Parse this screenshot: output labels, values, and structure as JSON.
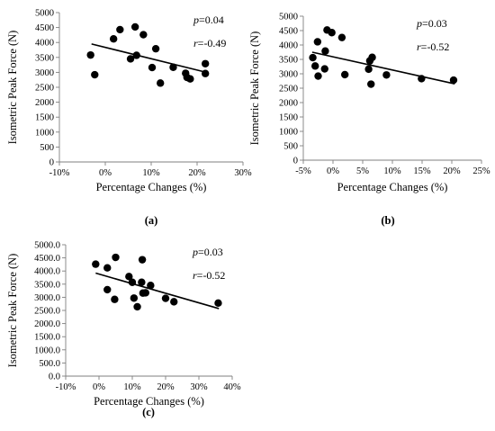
{
  "chart_data": [
    {
      "type": "scatter",
      "panel_label": "(a)",
      "xlabel": "Percentage Changes (%)",
      "ylabel": "Isometric Peak Force (N)",
      "xlim": [
        -10,
        30
      ],
      "ylim": [
        0,
        5000
      ],
      "x_ticks": [
        -10,
        0,
        10,
        20,
        30
      ],
      "x_tick_labels": [
        "-10%",
        "0%",
        "10%",
        "20%",
        "30%"
      ],
      "y_ticks": [
        0,
        500,
        1000,
        1500,
        2000,
        2500,
        3000,
        3500,
        4000,
        4500,
        5000
      ],
      "y_tick_labels": [
        "0",
        "500",
        "1000",
        "1500",
        "2000",
        "2500",
        "3000",
        "3500",
        "4000",
        "4500",
        "5000"
      ],
      "grid": false,
      "stats": {
        "p_symbol": "p",
        "p_text": "=0.04",
        "r_symbol": "r",
        "r_text": "=-0.49"
      },
      "trendline": {
        "x": [
          -3,
          22
        ],
        "y": [
          3950,
          3000
        ]
      },
      "points": [
        {
          "x": -3.2,
          "y": 3580
        },
        {
          "x": -2.3,
          "y": 2920
        },
        {
          "x": 1.8,
          "y": 4120
        },
        {
          "x": 3.2,
          "y": 4430
        },
        {
          "x": 5.5,
          "y": 3450
        },
        {
          "x": 6.5,
          "y": 4520
        },
        {
          "x": 6.8,
          "y": 3570
        },
        {
          "x": 8.3,
          "y": 4260
        },
        {
          "x": 10.2,
          "y": 3160
        },
        {
          "x": 11.0,
          "y": 3790
        },
        {
          "x": 12.0,
          "y": 2640
        },
        {
          "x": 14.8,
          "y": 3170
        },
        {
          "x": 17.5,
          "y": 2970
        },
        {
          "x": 17.8,
          "y": 2830
        },
        {
          "x": 18.5,
          "y": 2780
        },
        {
          "x": 21.8,
          "y": 3290
        },
        {
          "x": 21.8,
          "y": 2960
        }
      ]
    },
    {
      "type": "scatter",
      "panel_label": "(b)",
      "xlabel": "Percentage Changes (%)",
      "ylabel": "Isometric Peak Force (N)",
      "xlim": [
        -5,
        25
      ],
      "ylim": [
        0,
        5000
      ],
      "x_ticks": [
        -5,
        0,
        5,
        10,
        15,
        20,
        25
      ],
      "x_tick_labels": [
        "-5%",
        "0%",
        "5%",
        "10%",
        "15%",
        "20%",
        "25%"
      ],
      "y_ticks": [
        0,
        500,
        1000,
        1500,
        2000,
        2500,
        3000,
        3500,
        4000,
        4500,
        5000
      ],
      "y_tick_labels": [
        "0",
        "500",
        "1000",
        "1500",
        "2000",
        "2500",
        "3000",
        "3500",
        "4000",
        "4500",
        "5000"
      ],
      "grid": false,
      "stats": {
        "p_symbol": "p",
        "p_text": "=0.03",
        "r_symbol": "r",
        "r_text": "=-0.52"
      },
      "trendline": {
        "x": [
          -3.5,
          20.5
        ],
        "y": [
          3750,
          2650
        ]
      },
      "points": [
        {
          "x": -3.4,
          "y": 3560
        },
        {
          "x": -3.0,
          "y": 3270
        },
        {
          "x": -2.6,
          "y": 4110
        },
        {
          "x": -2.5,
          "y": 2920
        },
        {
          "x": -1.4,
          "y": 3170
        },
        {
          "x": -1.3,
          "y": 3790
        },
        {
          "x": -1.0,
          "y": 4520
        },
        {
          "x": -0.2,
          "y": 4430
        },
        {
          "x": 1.5,
          "y": 4260
        },
        {
          "x": 2.0,
          "y": 2970
        },
        {
          "x": 6.0,
          "y": 3160
        },
        {
          "x": 6.2,
          "y": 3450
        },
        {
          "x": 6.4,
          "y": 2640
        },
        {
          "x": 6.6,
          "y": 3570
        },
        {
          "x": 9.0,
          "y": 2960
        },
        {
          "x": 14.9,
          "y": 2830
        },
        {
          "x": 20.3,
          "y": 2780
        }
      ]
    },
    {
      "type": "scatter",
      "panel_label": "(c)",
      "xlabel": "Percentage Changes (%)",
      "ylabel": "Isometric Peak Force (N)",
      "xlim": [
        -10,
        40
      ],
      "ylim": [
        0,
        5000
      ],
      "x_ticks": [
        -10,
        0,
        10,
        20,
        30,
        40
      ],
      "x_tick_labels": [
        "-10%",
        "0%",
        "10%",
        "20%",
        "30%",
        "40%"
      ],
      "y_ticks": [
        0,
        500,
        1000,
        1500,
        2000,
        2500,
        3000,
        3500,
        4000,
        4500,
        5000
      ],
      "y_tick_labels": [
        "0.0",
        "500.0",
        "1000.0",
        "1500.0",
        "2000.0",
        "2500.0",
        "3000.0",
        "3500.0",
        "4000.0",
        "4500.0",
        "5000.0"
      ],
      "grid": false,
      "stats": {
        "p_symbol": "p",
        "p_text": "=0.03",
        "r_symbol": "r",
        "r_text": "=-0.52"
      },
      "trendline": {
        "x": [
          -1,
          36
        ],
        "y": [
          3920,
          2570
        ]
      },
      "points": [
        {
          "x": -1.0,
          "y": 4260
        },
        {
          "x": 2.5,
          "y": 4120
        },
        {
          "x": 2.5,
          "y": 3290
        },
        {
          "x": 4.7,
          "y": 2920
        },
        {
          "x": 5.0,
          "y": 4520
        },
        {
          "x": 9.0,
          "y": 3790
        },
        {
          "x": 10.0,
          "y": 3570
        },
        {
          "x": 10.5,
          "y": 2970
        },
        {
          "x": 11.5,
          "y": 2640
        },
        {
          "x": 12.8,
          "y": 3570
        },
        {
          "x": 13.0,
          "y": 4430
        },
        {
          "x": 13.2,
          "y": 3160
        },
        {
          "x": 14.0,
          "y": 3170
        },
        {
          "x": 15.5,
          "y": 3450
        },
        {
          "x": 20.0,
          "y": 2960
        },
        {
          "x": 22.5,
          "y": 2830
        },
        {
          "x": 35.8,
          "y": 2780
        }
      ]
    }
  ]
}
